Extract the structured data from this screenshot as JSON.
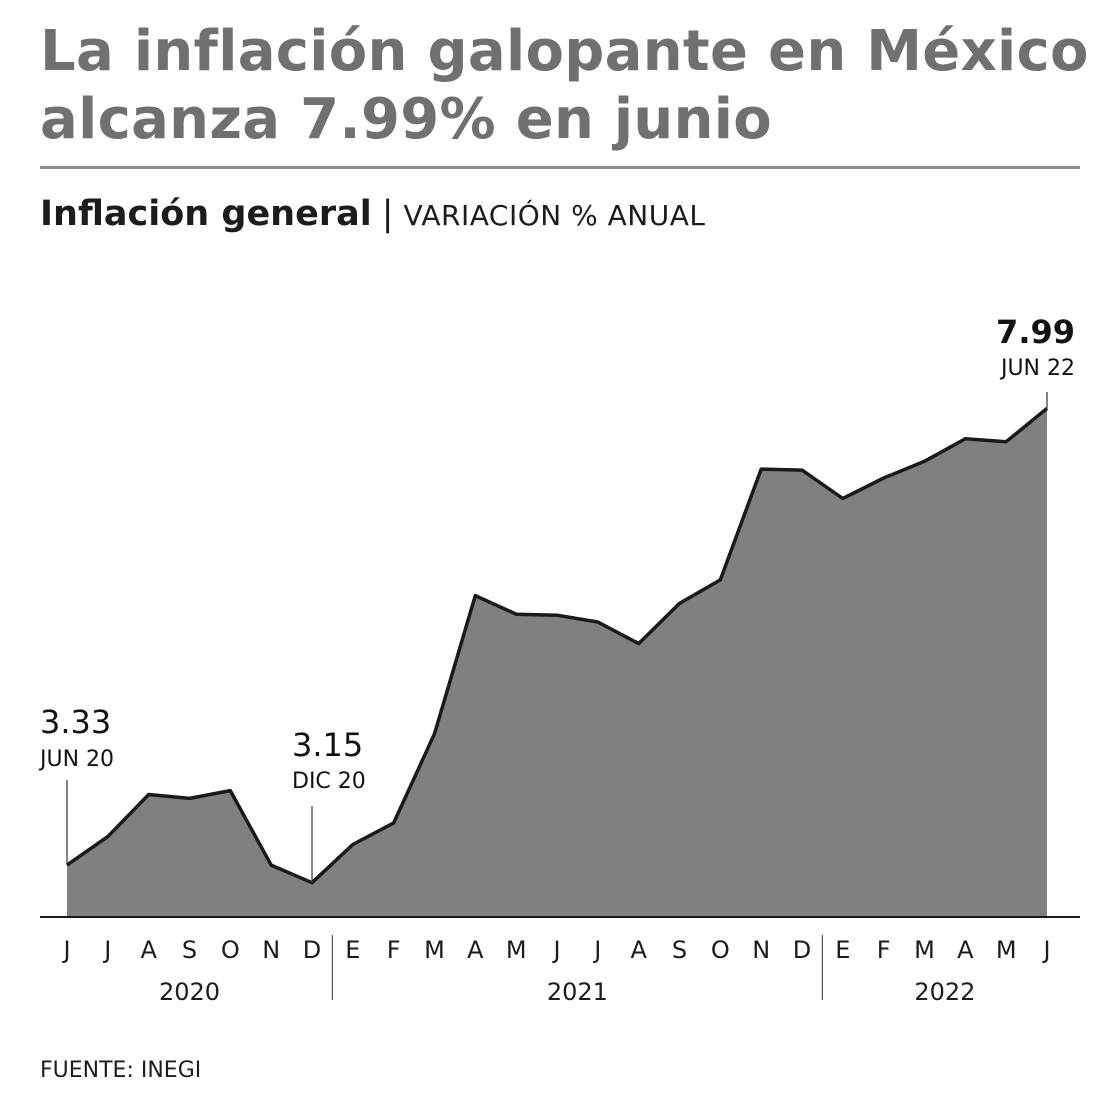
{
  "headline": "La inflación galopante en México alcanza 7.99% en junio",
  "subtitle": {
    "main": "Inflación general",
    "separator": "|",
    "unit": "VARIACIÓN % ANUAL"
  },
  "source": "FUENTE: INEGI",
  "colors": {
    "area": "#808083",
    "line": "#1a1a1a",
    "headline": "#707070"
  },
  "chart_data": {
    "type": "area",
    "x": [
      "J",
      "J",
      "A",
      "S",
      "O",
      "N",
      "D",
      "E",
      "F",
      "M",
      "A",
      "M",
      "J",
      "J",
      "A",
      "S",
      "O",
      "N",
      "D",
      "E",
      "F",
      "M",
      "A",
      "M",
      "J"
    ],
    "year_groups": [
      {
        "label": "2020",
        "count": 7
      },
      {
        "label": "2021",
        "count": 12
      },
      {
        "label": "2022",
        "count": 6
      }
    ],
    "series": [
      {
        "values": [
          3.33,
          3.62,
          4.05,
          4.01,
          4.09,
          3.33,
          3.15,
          3.54,
          3.76,
          4.67,
          6.08,
          5.89,
          5.88,
          5.81,
          5.59,
          6.0,
          6.24,
          7.37,
          7.36,
          7.07,
          7.28,
          7.45,
          7.68,
          7.65,
          7.99
        ]
      }
    ],
    "ylim": [
      2.8,
      8.2
    ],
    "grid": false,
    "annotations": [
      {
        "index": 0,
        "value": "3.33",
        "label": "JUN 20",
        "bold": false
      },
      {
        "index": 6,
        "value": "3.15",
        "label": "DIC 20",
        "bold": false
      },
      {
        "index": 24,
        "value": "7.99",
        "label": "JUN 22",
        "bold": true
      }
    ]
  }
}
